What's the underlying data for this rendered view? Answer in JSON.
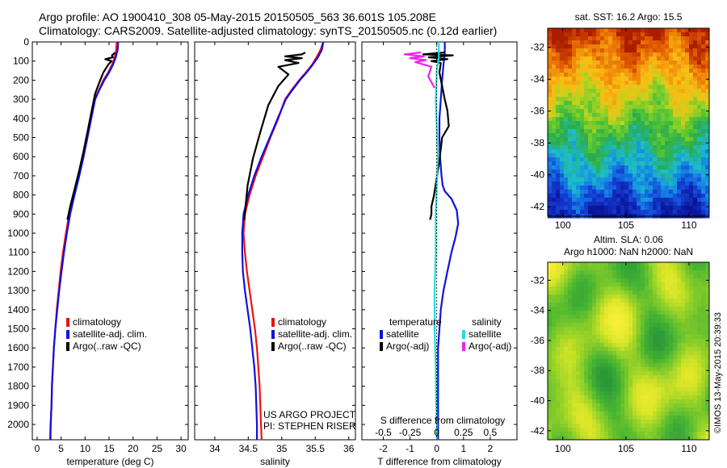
{
  "header": {
    "line1": "Argo profile: AO 1900410_308 05-May-2015 20150505_563 36.601S 105.208E",
    "line2": "Climatology: CARS2009. Satellite-adjusted climatology: synTS_20150505.nc (0.12d earlier)"
  },
  "colors": {
    "climatology": "#ee1111",
    "satellite": "#1111dd",
    "argo": "#000000",
    "salinity_satellite": "#22dddd",
    "salinity_argo": "#ee22ee"
  },
  "chart_data": [
    {
      "id": "temperature",
      "type": "line",
      "xlabel": "temperature (deg C)",
      "ylabel": "",
      "xlim": [
        -1,
        31.5
      ],
      "ylim": [
        2080,
        0
      ],
      "xticks": [
        0,
        5,
        10,
        15,
        20,
        25,
        30
      ],
      "yticks": [
        0,
        100,
        200,
        300,
        400,
        500,
        600,
        700,
        800,
        900,
        1000,
        1100,
        1200,
        1300,
        1400,
        1500,
        1600,
        1700,
        1800,
        1900,
        2000
      ],
      "legend": [
        "climatology",
        "satellite-adj. clim.",
        "Argo(..raw -QC)"
      ],
      "series": [
        {
          "name": "climatology",
          "color": "#ee1111",
          "x": [
            16.6,
            16.5,
            16.2,
            15.6,
            14.8,
            13.8,
            12.9,
            12.0,
            11.2,
            10.4,
            9.6,
            8.7,
            7.6,
            6.7,
            6.0,
            5.4,
            4.9,
            4.5,
            4.1,
            3.8,
            3.5,
            3.3,
            3.1,
            3.0,
            2.9,
            2.8,
            2.75,
            2.7
          ],
          "y": [
            0,
            40,
            80,
            120,
            160,
            200,
            250,
            300,
            400,
            500,
            600,
            700,
            800,
            900,
            1000,
            1100,
            1200,
            1300,
            1400,
            1500,
            1600,
            1700,
            1800,
            1900,
            1950,
            2000,
            2040,
            2080
          ]
        },
        {
          "name": "satellite-adj. clim.",
          "color": "#1111dd",
          "x": [
            16.9,
            16.8,
            16.4,
            15.8,
            15.0,
            14.0,
            13.0,
            12.1,
            11.3,
            10.5,
            9.7,
            8.8,
            7.8,
            6.9,
            6.2,
            5.6,
            5.1,
            4.6,
            4.2,
            3.8,
            3.5,
            3.3,
            3.1,
            3.0,
            2.9,
            2.85,
            2.8,
            2.8
          ],
          "y": [
            0,
            40,
            80,
            120,
            160,
            200,
            250,
            300,
            400,
            500,
            600,
            700,
            800,
            900,
            1000,
            1100,
            1200,
            1300,
            1400,
            1500,
            1600,
            1700,
            1800,
            1900,
            1950,
            2000,
            2040,
            2080
          ]
        },
        {
          "name": "Argo(..raw -QC)",
          "color": "#000000",
          "x": [
            16.2,
            16.1,
            15.6,
            15.8,
            14.2,
            15.5,
            14.8,
            13.8,
            13.0,
            12.1,
            11.3,
            10.5,
            9.7,
            8.8,
            7.8,
            6.9,
            6.3
          ],
          "y": [
            55,
            60,
            70,
            80,
            90,
            100,
            120,
            160,
            210,
            270,
            370,
            470,
            570,
            670,
            770,
            860,
            930
          ]
        }
      ]
    },
    {
      "id": "salinity",
      "type": "line",
      "xlabel": "salinity",
      "ylabel": "",
      "xlim": [
        33.7,
        36.1
      ],
      "ylim": [
        2080,
        0
      ],
      "xticks": [
        34,
        34.5,
        35,
        35.5,
        36
      ],
      "legend": [
        "climatology",
        "satellite-adj. clim.",
        "Argo(..raw -QC)"
      ],
      "annotation": [
        "US ARGO PROJECT",
        "PI: STEPHEN RISER"
      ],
      "series": [
        {
          "name": "climatology",
          "color": "#ee1111",
          "x": [
            35.62,
            35.58,
            35.52,
            35.45,
            35.36,
            35.26,
            35.15,
            35.05,
            34.95,
            34.83,
            34.72,
            34.61,
            34.52,
            34.45,
            34.43,
            34.45,
            34.48,
            34.52,
            34.56,
            34.6,
            34.63,
            34.65,
            34.67,
            34.68,
            34.69,
            34.7
          ],
          "y": [
            0,
            40,
            80,
            120,
            160,
            200,
            250,
            300,
            400,
            500,
            600,
            700,
            800,
            900,
            1000,
            1100,
            1200,
            1300,
            1400,
            1500,
            1600,
            1700,
            1800,
            1900,
            2000,
            2080
          ]
        },
        {
          "name": "satellite-adj. clim.",
          "color": "#1111dd",
          "x": [
            35.62,
            35.6,
            35.54,
            35.46,
            35.37,
            35.27,
            35.16,
            35.06,
            34.94,
            34.82,
            34.7,
            34.59,
            34.5,
            34.43,
            34.41,
            34.41,
            34.42,
            34.45,
            34.49,
            34.53,
            34.56,
            34.59,
            34.61,
            34.62,
            34.63,
            34.63
          ],
          "y": [
            0,
            40,
            80,
            120,
            160,
            200,
            250,
            300,
            400,
            500,
            600,
            700,
            800,
            900,
            1000,
            1100,
            1200,
            1300,
            1400,
            1500,
            1600,
            1700,
            1800,
            1900,
            2000,
            2080
          ]
        },
        {
          "name": "Argo(..raw -QC)",
          "color": "#000000",
          "x": [
            35.35,
            35.3,
            35.05,
            35.3,
            35.05,
            35.25,
            34.95,
            35.1,
            34.95,
            34.8,
            34.68,
            34.57,
            34.49,
            34.44
          ],
          "y": [
            55,
            65,
            75,
            85,
            95,
            110,
            130,
            170,
            230,
            330,
            470,
            610,
            750,
            930
          ]
        }
      ]
    },
    {
      "id": "difference",
      "type": "line",
      "xlabel": "T difference from climatology",
      "ylabel": "",
      "xlim": [
        -2.8,
        3.0
      ],
      "ylim": [
        2080,
        0
      ],
      "xticks": [
        -2,
        -1,
        0,
        1,
        2
      ],
      "secondary_xlabel": "S difference from climatology",
      "secondary_xticks": [
        -0.5,
        -0.25,
        0,
        0.25,
        0.5
      ],
      "secondary_xlim": [
        -0.7,
        0.75
      ],
      "legend_groups": [
        {
          "title": "temperature",
          "items": [
            "satellite",
            "Argo(-adj)"
          ]
        },
        {
          "title": "salinity",
          "items": [
            "satellite",
            "Argo(-adj)"
          ]
        }
      ],
      "series": [
        {
          "name": "temperature satellite",
          "color": "#1111dd",
          "x": [
            0.3,
            0.3,
            0.25,
            0.2,
            0.15,
            0.1,
            0.1,
            0.12,
            0.15,
            0.18,
            0.22,
            0.3,
            0.55,
            0.75,
            0.8,
            0.7,
            0.55,
            0.4,
            0.25,
            0.15,
            0.1,
            0.05,
            0.05,
            0.05,
            0.05
          ],
          "y": [
            0,
            60,
            120,
            200,
            300,
            400,
            500,
            600,
            650,
            700,
            750,
            780,
            820,
            880,
            950,
            1020,
            1100,
            1200,
            1300,
            1400,
            1500,
            1600,
            1800,
            2000,
            2080
          ]
        },
        {
          "name": "temperature Argo(-adj)",
          "color": "#000000",
          "x": [
            0.3,
            -0.5,
            0.6,
            -0.3,
            0.4,
            -0.2,
            0.15,
            0.1,
            0.3,
            0.4,
            0.45,
            0.2,
            0.1,
            -0.1,
            -0.2,
            -0.2,
            -0.25
          ],
          "y": [
            55,
            65,
            70,
            80,
            90,
            100,
            110,
            160,
            300,
            360,
            440,
            500,
            620,
            800,
            860,
            900,
            930
          ]
        },
        {
          "name": "salinity satellite",
          "color": "#22dddd",
          "x": [
            0.02,
            0.02,
            0.0,
            -0.01,
            0.0,
            0.01,
            0.0,
            -0.01,
            -0.01,
            -0.02,
            -0.02,
            -0.01,
            -0.005,
            0.0,
            0.0
          ],
          "y": [
            0,
            80,
            150,
            300,
            450,
            600,
            750,
            900,
            1100,
            1300,
            1500,
            1700,
            1900,
            2000,
            2080
          ]
        },
        {
          "name": "salinity Argo(-adj)",
          "color": "#ee22ee",
          "x": [
            -0.15,
            -0.3,
            -0.12,
            -0.25,
            -0.1,
            -0.2,
            -0.05,
            -0.08,
            -0.02
          ],
          "y": [
            55,
            65,
            75,
            85,
            95,
            105,
            130,
            180,
            240
          ]
        }
      ]
    },
    {
      "id": "sst_map",
      "type": "heatmap",
      "title": "sat. SST: 16.2 Argo: 15.5",
      "xticks": [
        100,
        105,
        110
      ],
      "yticks": [
        -32,
        -34,
        -36,
        -38,
        -40,
        -42
      ],
      "xlim": [
        98.8,
        111.6
      ],
      "ylim": [
        -42.6,
        -30.8
      ]
    },
    {
      "id": "sla_map",
      "type": "heatmap",
      "title": "Altim. SLA: 0.06",
      "subtitle": "Argo h1000: NaN h2000: NaN",
      "xticks": [
        100,
        105,
        110
      ],
      "yticks": [
        -32,
        -34,
        -36,
        -38,
        -40,
        -42
      ],
      "xlim": [
        98.8,
        111.6
      ],
      "ylim": [
        -42.6,
        -30.8
      ]
    }
  ],
  "footer": {
    "stamp": "©IMOS 13-May-2015 20:39:33"
  }
}
